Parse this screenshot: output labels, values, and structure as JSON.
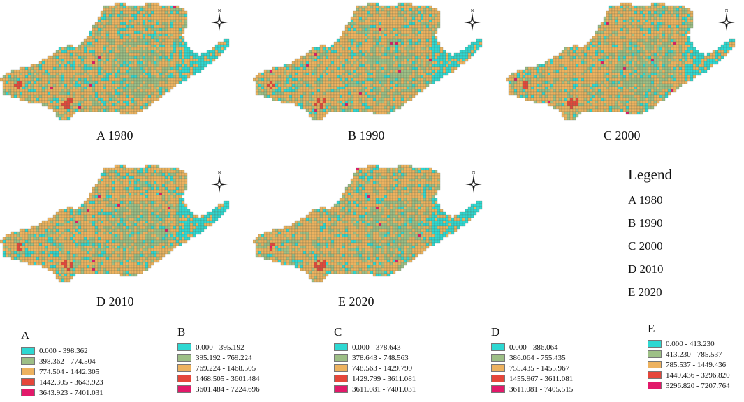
{
  "colors": {
    "class1": "#2ed8d2",
    "class2": "#9dbf86",
    "class3": "#edb25f",
    "class4": "#e5463a",
    "class5": "#e2196a",
    "grid": "#5b6d55"
  },
  "maps": [
    {
      "caption": "A 1980"
    },
    {
      "caption": "B 1990"
    },
    {
      "caption": "C 2000"
    },
    {
      "caption": "D 2010"
    },
    {
      "caption": "E 2020"
    }
  ],
  "compass_label": "N",
  "legend": {
    "title": "Legend",
    "items": [
      "A 1980",
      "B 1990",
      "C 2000",
      "D 2010",
      "E 2020"
    ]
  },
  "classes": [
    {
      "label": "A",
      "ranges": [
        "0.000 - 398.362",
        "398.362 - 774.504",
        "774.504 - 1442.305",
        "1442.305 - 3643.923",
        "3643.923 - 7401.031"
      ]
    },
    {
      "label": "B",
      "ranges": [
        "0.000 - 395.192",
        "395.192 - 769.224",
        "769.224 - 1468.505",
        "1468.505 - 3601.484",
        "3601.484 - 7224.696"
      ]
    },
    {
      "label": "C",
      "ranges": [
        "0.000 - 378.643",
        "378.643 - 748.563",
        "748.563 - 1429.799",
        "1429.799 - 3611.081",
        "3611.081 - 7401.031"
      ]
    },
    {
      "label": "D",
      "ranges": [
        "0.000 - 386.064",
        "386.064 - 755.435",
        "755.435 - 1455.967",
        "1455.967 - 3611.081",
        "3611.081 - 7405.515"
      ]
    },
    {
      "label": "E",
      "ranges": [
        "0.000 - 413.230",
        "413.230 - 785.537",
        "785.537 - 1449.436",
        "1449.436 - 3296.820",
        "3296.820 - 7207.764"
      ]
    }
  ]
}
